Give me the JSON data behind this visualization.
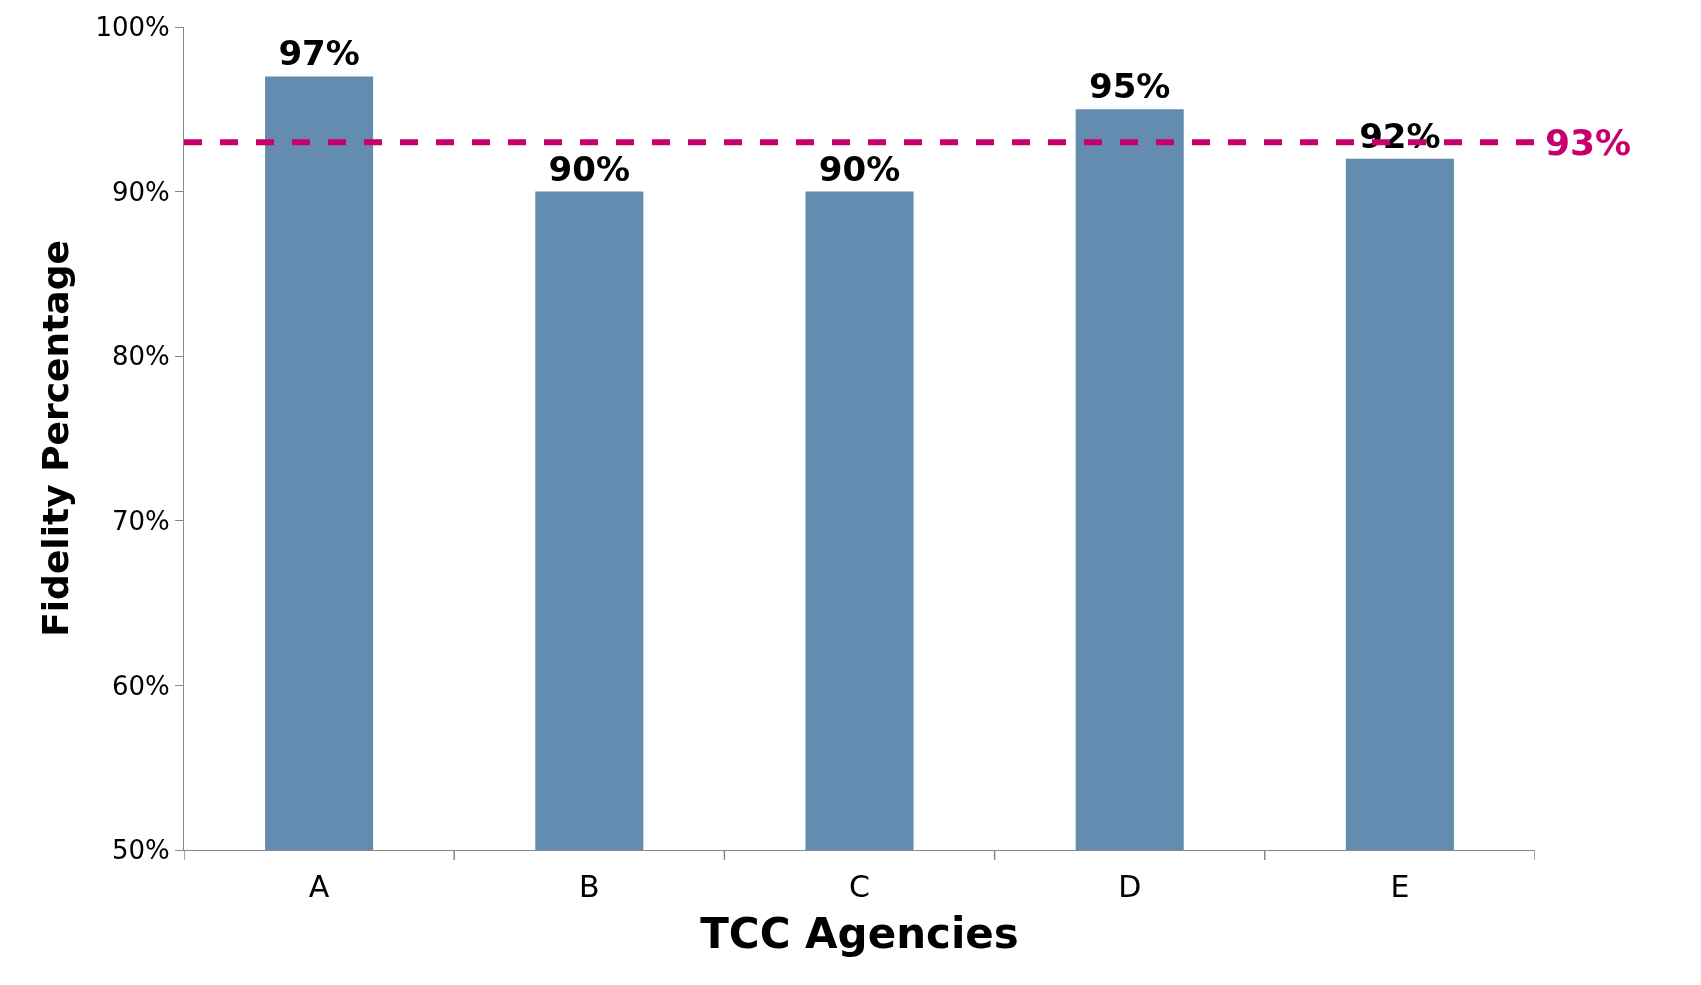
{
  "chart_data": {
    "type": "bar",
    "xlabel": "TCC Agencies",
    "ylabel": "Fidelity Percentage",
    "categories": [
      "A",
      "B",
      "C",
      "D",
      "E"
    ],
    "values": [
      97,
      90,
      90,
      95,
      92
    ],
    "color": "#648cb0",
    "value_labels": [
      "97%",
      "90%",
      "90%",
      "95%",
      "92%"
    ],
    "ylim": [
      50,
      100
    ],
    "yticks": [
      {
        "value": 50,
        "label": "50%"
      },
      {
        "value": 60,
        "label": "60%"
      },
      {
        "value": 70,
        "label": "70%"
      },
      {
        "value": 80,
        "label": "80%"
      },
      {
        "value": 90,
        "label": "90%"
      },
      {
        "value": 100,
        "label": "100%"
      }
    ],
    "ref_lines": [
      {
        "axis": "y",
        "value": 93,
        "label": "93%",
        "color": "#c8006e",
        "line_style": "dashed"
      }
    ],
    "legend": false
  }
}
